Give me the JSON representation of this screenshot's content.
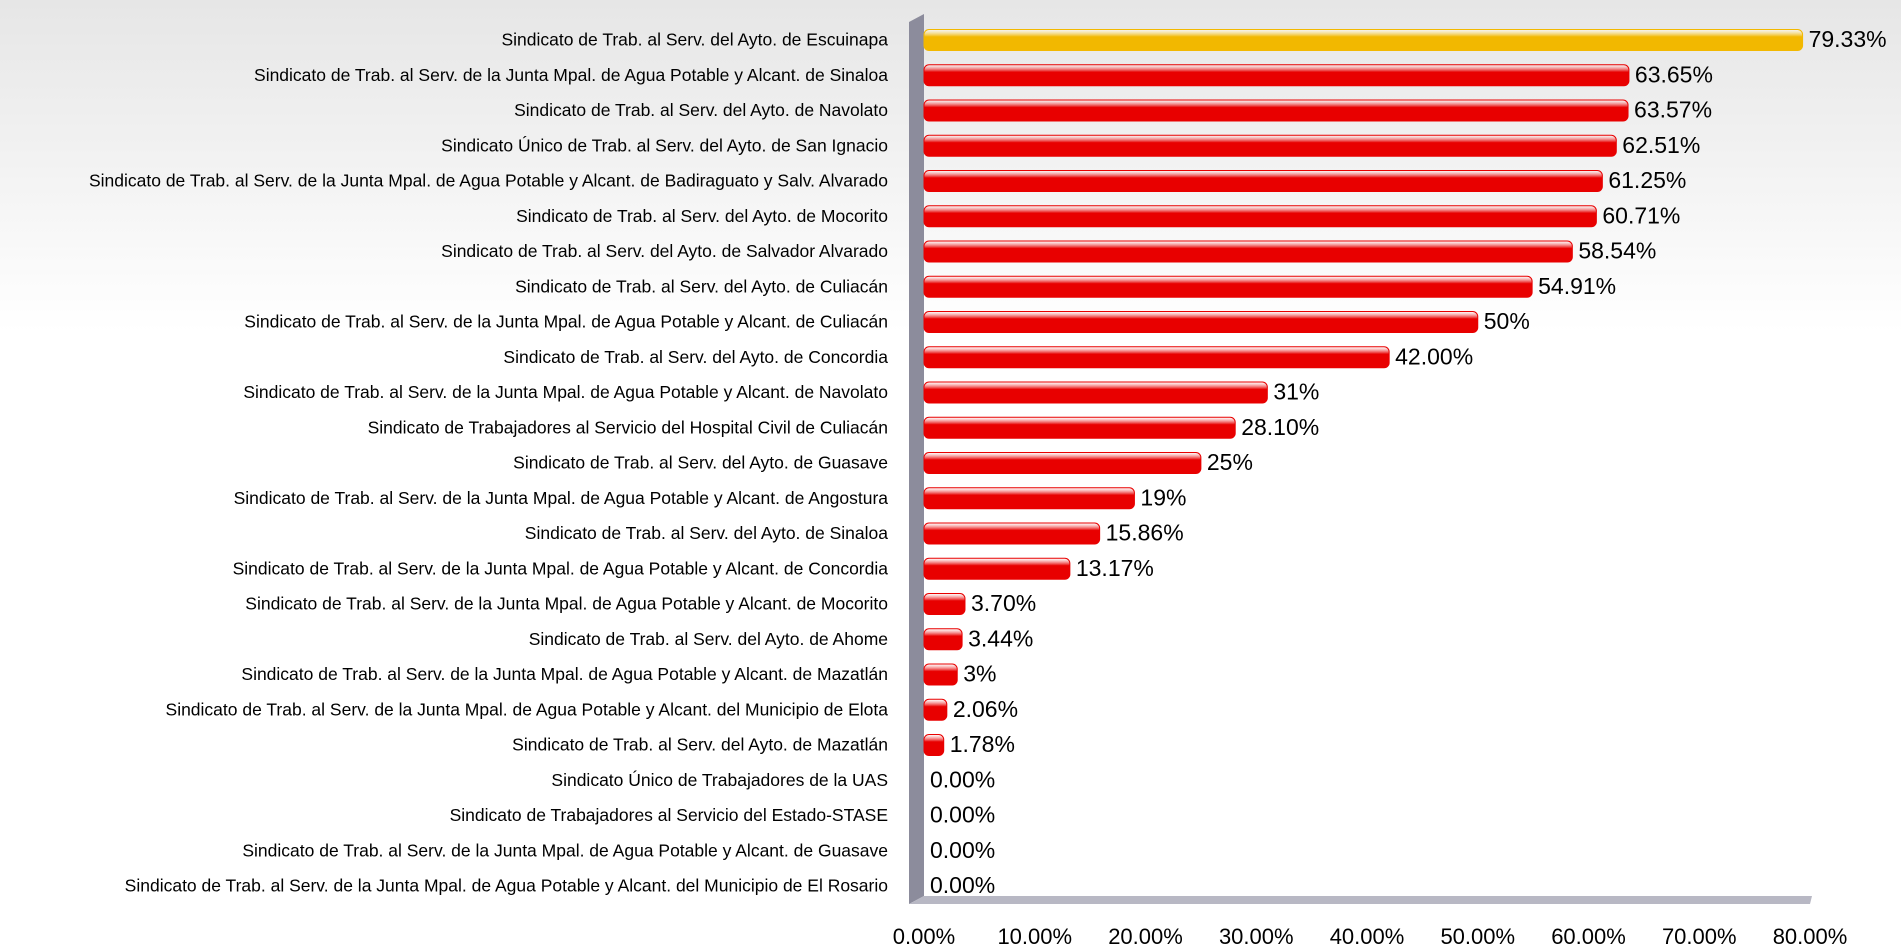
{
  "chart_data": {
    "type": "bar",
    "orientation": "horizontal",
    "categories": [
      "Sindicato de Trab. al Serv. del Ayto. de Escuinapa",
      "Sindicato de Trab. al Serv. de la Junta Mpal. de Agua Potable y Alcant. de Sinaloa",
      "Sindicato de Trab. al Serv. del Ayto. de Navolato",
      "Sindicato Único de Trab. al Serv. del Ayto. de San Ignacio",
      "Sindicato de Trab. al Serv. de la Junta Mpal. de Agua Potable y Alcant. de Badiraguato y Salv. Alvarado",
      "Sindicato de Trab. al Serv. del Ayto. de Mocorito",
      "Sindicato de Trab. al Serv. del Ayto. de Salvador Alvarado",
      "Sindicato de Trab. al Serv. del Ayto. de Culiacán",
      "Sindicato de Trab. al Serv. de la Junta Mpal. de Agua Potable y Alcant. de Culiacán",
      "Sindicato de Trab. al Serv. del Ayto. de Concordia",
      "Sindicato de Trab. al Serv. de la Junta Mpal. de Agua Potable y Alcant. de Navolato",
      "Sindicato de Trabajadores al Servicio del Hospital Civil de Culiacán",
      "Sindicato de Trab. al Serv. del Ayto. de Guasave",
      "Sindicato de Trab. al Serv. de la Junta Mpal. de Agua Potable y Alcant. de Angostura",
      "Sindicato de Trab. al Serv. del Ayto. de Sinaloa",
      "Sindicato de Trab. al Serv. de la Junta Mpal. de Agua Potable y Alcant. de Concordia",
      "Sindicato de Trab. al Serv. de la Junta Mpal. de Agua Potable y Alcant. de Mocorito",
      "Sindicato de Trab. al Serv. del Ayto. de Ahome",
      "Sindicato de Trab. al Serv. de la Junta Mpal. de Agua Potable y Alcant. de Mazatlán",
      "Sindicato de Trab. al Serv. de la Junta Mpal. de Agua Potable y Alcant. del Municipio de Elota",
      "Sindicato de Trab. al Serv. del Ayto. de Mazatlán",
      "Sindicato Único de Trabajadores de la UAS",
      "Sindicato de Trabajadores al Servicio del Estado-STASE",
      "Sindicato de Trab. al Serv. de la Junta Mpal. de Agua Potable y Alcant. de Guasave",
      "Sindicato de Trab. al Serv. de la Junta Mpal. de Agua Potable y Alcant. del Municipio de El Rosario"
    ],
    "values": [
      79.33,
      63.65,
      63.57,
      62.51,
      61.25,
      60.71,
      58.54,
      54.91,
      50,
      42.0,
      31,
      28.1,
      25,
      19,
      15.86,
      13.17,
      3.7,
      3.44,
      3,
      2.06,
      1.78,
      0,
      0,
      0,
      0
    ],
    "value_labels": [
      "79.33%",
      "63.65%",
      "63.57%",
      "62.51%",
      "61.25%",
      "60.71%",
      "58.54%",
      "54.91%",
      "50%",
      "42.00%",
      "31%",
      "28.10%",
      "25%",
      "19%",
      "15.86%",
      "13.17%",
      "3.70%",
      "3.44%",
      "3%",
      "2.06%",
      "1.78%",
      "0.00%",
      "0.00%",
      "0.00%",
      "0.00%"
    ],
    "colors": [
      "#f2b800",
      "#e80000",
      "#e80000",
      "#e80000",
      "#e80000",
      "#e80000",
      "#e80000",
      "#e80000",
      "#e80000",
      "#e80000",
      "#e80000",
      "#e80000",
      "#e80000",
      "#e80000",
      "#e80000",
      "#e80000",
      "#e80000",
      "#e80000",
      "#e80000",
      "#e80000",
      "#e80000",
      "#e80000",
      "#e80000",
      "#e80000",
      "#e80000"
    ],
    "xlim": [
      0,
      80
    ],
    "xticks": [
      {
        "value": 0,
        "label": "0.00%"
      },
      {
        "value": 10,
        "label": "10.00%"
      },
      {
        "value": 20,
        "label": "20.00%"
      },
      {
        "value": 30,
        "label": "30.00%"
      },
      {
        "value": 40,
        "label": "40.00%"
      },
      {
        "value": 50,
        "label": "50.00%"
      },
      {
        "value": 60,
        "label": "60.00%"
      },
      {
        "value": 70,
        "label": "70.00%"
      },
      {
        "value": 80,
        "label": "80.00%"
      }
    ],
    "grid": false
  }
}
